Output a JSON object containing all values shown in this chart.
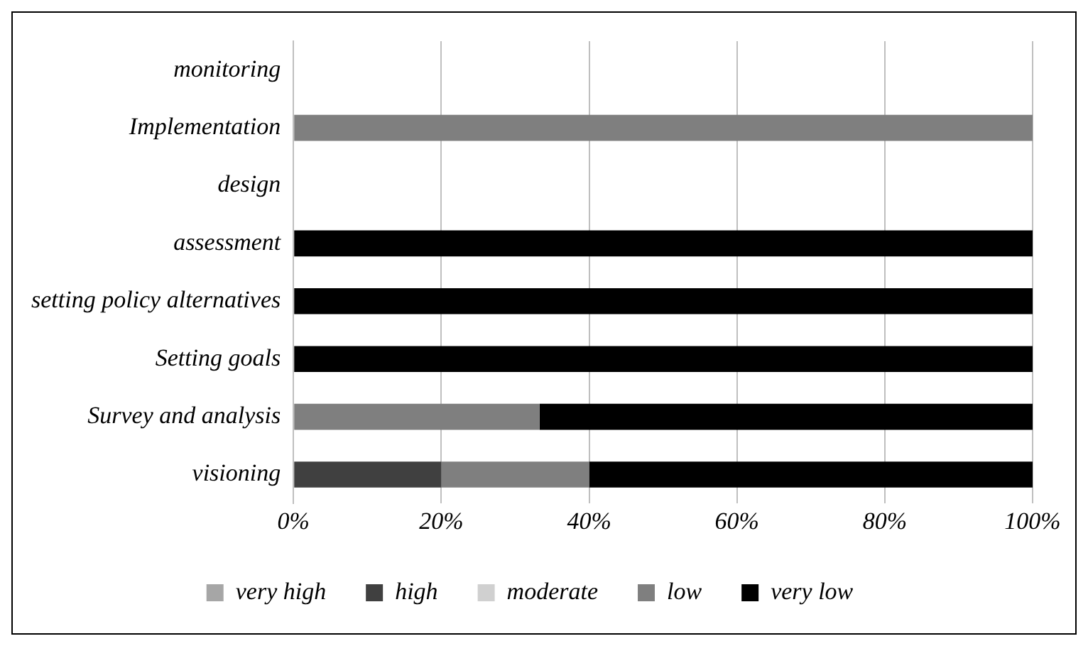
{
  "chart_data": {
    "type": "bar",
    "orientation": "horizontal",
    "stacked": true,
    "categories": [
      "monitoring",
      "Implementation",
      "design",
      "assessment",
      "setting policy alternatives",
      "Setting goals",
      "Survey and analysis",
      "visioning"
    ],
    "series": [
      {
        "name": "very high",
        "color": "#a6a6a6",
        "values": [
          0,
          0,
          0,
          0,
          0,
          0,
          0,
          0
        ]
      },
      {
        "name": "high",
        "color": "#404040",
        "values": [
          0,
          0,
          0,
          0,
          0,
          0,
          0,
          20
        ]
      },
      {
        "name": "moderate",
        "color": "#d0d0d0",
        "values": [
          0,
          0,
          0,
          0,
          0,
          0,
          0,
          0
        ]
      },
      {
        "name": "low",
        "color": "#7f7f7f",
        "values": [
          0,
          100,
          0,
          0,
          0,
          0,
          33.3,
          20
        ]
      },
      {
        "name": "very low",
        "color": "#000000",
        "values": [
          0,
          0,
          0,
          100,
          100,
          100,
          66.7,
          60
        ]
      }
    ],
    "xlim": [
      0,
      100
    ],
    "xticks": [
      {
        "value": 0,
        "label": "0%"
      },
      {
        "value": 20,
        "label": "20%"
      },
      {
        "value": 40,
        "label": "40%"
      },
      {
        "value": 60,
        "label": "60%"
      },
      {
        "value": 80,
        "label": "80%"
      },
      {
        "value": 100,
        "label": "100%"
      }
    ],
    "grid": "x",
    "legend": "bottom"
  }
}
